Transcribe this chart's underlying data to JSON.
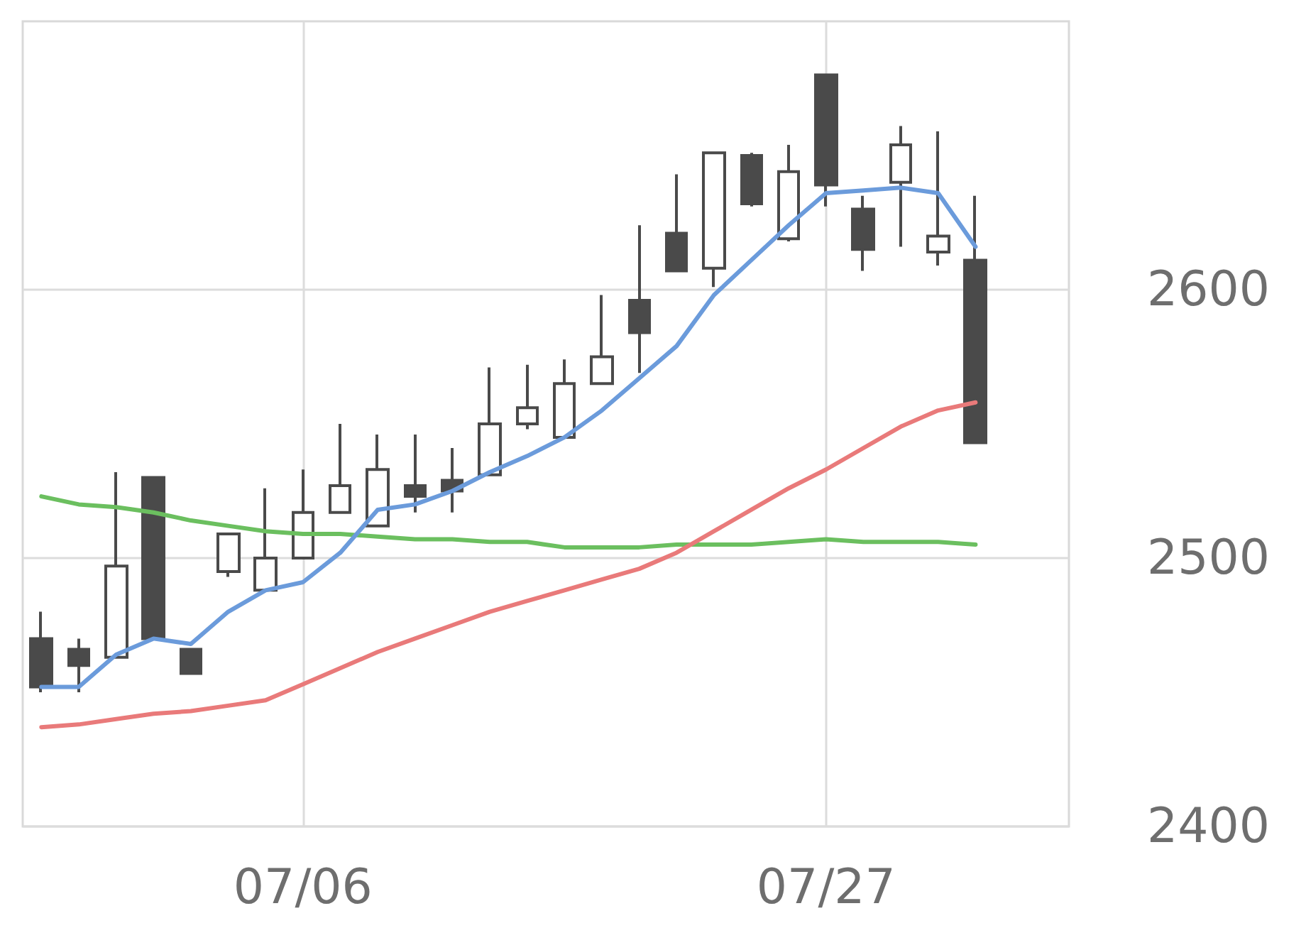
{
  "chart_data": {
    "type": "candlestick",
    "categories": [
      null,
      null,
      null,
      null,
      null,
      null,
      null,
      "07/06",
      null,
      null,
      null,
      null,
      null,
      null,
      null,
      null,
      null,
      null,
      null,
      null,
      null,
      "07/27",
      null,
      null,
      null,
      null,
      null,
      null
    ],
    "ylim": [
      2400,
      2700
    ],
    "yticks": [
      2400,
      2500,
      2600
    ],
    "grid": true,
    "series": [
      {
        "type": "line",
        "color": "#6bbf5f",
        "values": [
          2523,
          2520,
          2519,
          2517,
          2514,
          2512,
          2510,
          2509,
          2509,
          2508,
          2507,
          2507,
          2506,
          2506,
          2504,
          2504,
          2504,
          2505,
          2505,
          2505,
          2506,
          2507,
          2506,
          2506,
          2506,
          2505,
          null,
          null
        ]
      },
      {
        "type": "line",
        "color": "#e97a7a",
        "values": [
          2437,
          2438,
          2440,
          2442,
          2443,
          2445,
          2447,
          2453,
          2459,
          2465,
          2470,
          2475,
          2480,
          2484,
          2488,
          2492,
          2496,
          2502,
          2510,
          2518,
          2526,
          2533,
          2541,
          2549,
          2555,
          2558,
          null,
          null
        ]
      },
      {
        "type": "line",
        "color": "#6b9bdb",
        "values": [
          2452,
          2452,
          2464,
          2470,
          2468,
          2480,
          2488,
          2491,
          2502,
          2518,
          2520,
          2525,
          2532,
          2538,
          2545,
          2555,
          2567,
          2579,
          2598,
          2611,
          2624,
          2636,
          2637,
          2638,
          2636,
          2616,
          null,
          null
        ]
      },
      {
        "color": "#4a4a4a",
        "ohlc": [
          [
            2470,
            2480,
            2450,
            2452
          ],
          [
            2466,
            2470,
            2450,
            2460
          ],
          [
            2463,
            2532,
            2463,
            2497
          ],
          [
            2530,
            2530,
            2470,
            2470
          ],
          [
            2466,
            2466,
            2457,
            2457
          ],
          [
            2495,
            2509,
            2493,
            2509
          ],
          [
            2488,
            2526,
            2488,
            2500
          ],
          [
            2500,
            2533,
            2500,
            2517
          ],
          [
            2517,
            2550,
            2517,
            2527
          ],
          [
            2512,
            2546,
            2512,
            2533
          ],
          [
            2527,
            2546,
            2517,
            2523
          ],
          [
            2529,
            2541,
            2517,
            2525
          ],
          [
            2531,
            2571,
            2531,
            2550
          ],
          [
            2550,
            2572,
            2548,
            2556
          ],
          [
            2545,
            2574,
            2545,
            2565
          ],
          [
            2565,
            2598,
            2565,
            2575
          ],
          [
            2596,
            2624,
            2569,
            2584
          ],
          [
            2621,
            2643,
            2607,
            2607
          ],
          [
            2608,
            2651,
            2601,
            2651
          ],
          [
            2650,
            2651,
            2631,
            2632
          ],
          [
            2619,
            2654,
            2618,
            2644
          ],
          [
            2680,
            2680,
            2631,
            2639
          ],
          [
            2630,
            2635,
            2607,
            2615
          ],
          [
            2640,
            2661,
            2616,
            2654
          ],
          [
            2614,
            2659,
            2609,
            2620
          ],
          [
            2611,
            2635,
            2543,
            2543
          ],
          null,
          null
        ]
      }
    ]
  }
}
